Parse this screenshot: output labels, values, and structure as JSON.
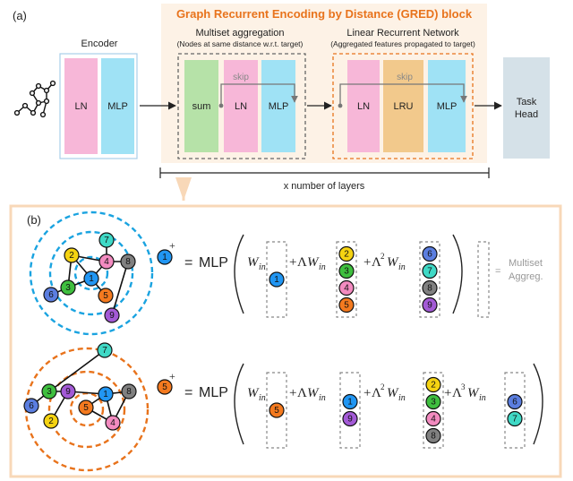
{
  "panel_a": {
    "label": "(a)",
    "gred_title": "Graph Recurrent Encoding by Distance (GRED) block",
    "encoder": {
      "title": "Encoder",
      "ln": "LN",
      "mlp": "MLP"
    },
    "multiset": {
      "title": "Multiset aggregation",
      "subtitle": "(Nodes at same distance w.r.t. target)",
      "sum": "sum",
      "ln": "LN",
      "mlp": "MLP",
      "skip": "skip"
    },
    "lrn": {
      "title": "Linear Recurrent Network",
      "subtitle": "(Aggregated features propagated to target)",
      "ln": "LN",
      "lru": "LRU",
      "mlp": "MLP",
      "skip": "skip"
    },
    "task_head": {
      "line1": "Task",
      "line2": "Head"
    },
    "layers_label": "x number of layers"
  },
  "panel_b": {
    "label": "(b)",
    "mlp": "MLP",
    "w_in": "W",
    "w_sub": "in",
    "lambda": "Λ",
    "plus": "+",
    "equals": "=",
    "legend_line1": "Multiset",
    "legend_line2": "Aggreg.",
    "row1": {
      "target": "1",
      "terms": [
        [
          "1"
        ],
        [
          "2",
          "3",
          "4",
          "5"
        ],
        [
          "6",
          "7",
          "8",
          "9"
        ]
      ]
    },
    "row2": {
      "target": "5",
      "terms": [
        [
          "5"
        ],
        [
          "1",
          "9"
        ],
        [
          "2",
          "3",
          "4",
          "8"
        ],
        [
          "6",
          "7"
        ]
      ]
    }
  },
  "colors": {
    "ln": "#f7b7d8",
    "mlp": "#9fe2f5",
    "sum": "#b6e2a8",
    "lru": "#f2c98c",
    "task": "#d5e1e8",
    "gred_bg": "#fdf2e6",
    "orange": "#e8731c",
    "blue": "#1aa3e0",
    "n1": "#2196f3",
    "n2": "#f5d312",
    "n3": "#3fbf3f",
    "n4": "#f38bc0",
    "n5": "#f47a1f",
    "n6": "#5b7ee0",
    "n7": "#3fd9c6",
    "n8": "#808080",
    "n9": "#a35ad6"
  }
}
